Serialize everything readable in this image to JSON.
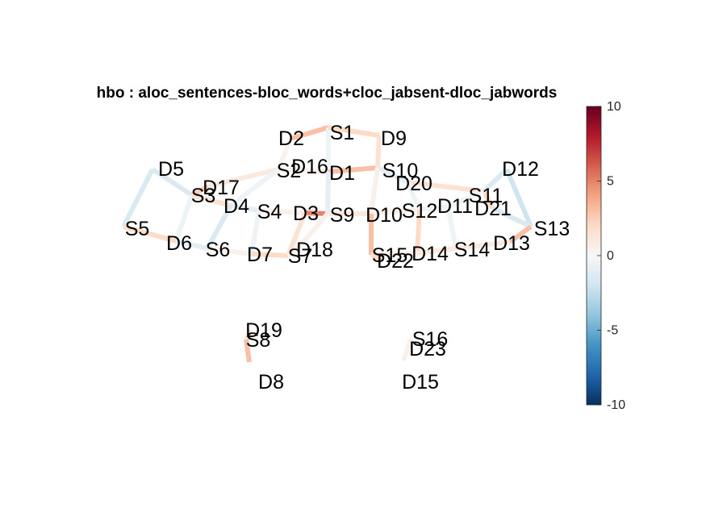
{
  "title": "hbo : aloc_sentences-bloc_words+cloc_jabsent-dloc_jabwords",
  "colorbar": {
    "ticks": [
      "10",
      "5",
      "0",
      "-5",
      "-10"
    ],
    "min": -10,
    "max": 10,
    "colors": [
      "#67001f",
      "#b2182b",
      "#d6604d",
      "#f4a582",
      "#fddbc7",
      "#f7f7f7",
      "#d1e5f0",
      "#92c5de",
      "#4393c3",
      "#2166ac",
      "#053061"
    ]
  },
  "nodes": [
    {
      "id": "S1",
      "label": "S1"
    },
    {
      "id": "D2",
      "label": "D2"
    },
    {
      "id": "D9",
      "label": "D9"
    },
    {
      "id": "D16",
      "label": "D16"
    },
    {
      "id": "S2",
      "label": "S2"
    },
    {
      "id": "D1",
      "label": "D1"
    },
    {
      "id": "S10",
      "label": "S10"
    },
    {
      "id": "D12",
      "label": "D12"
    },
    {
      "id": "D5",
      "label": "D5"
    },
    {
      "id": "D17",
      "label": "D17"
    },
    {
      "id": "D20",
      "label": "D20"
    },
    {
      "id": "S3",
      "label": "S3"
    },
    {
      "id": "S11",
      "label": "S11"
    },
    {
      "id": "D4",
      "label": "D4"
    },
    {
      "id": "D11",
      "label": "D11"
    },
    {
      "id": "D21",
      "label": "D21"
    },
    {
      "id": "S4",
      "label": "S4"
    },
    {
      "id": "S12",
      "label": "S12"
    },
    {
      "id": "D3",
      "label": "D3"
    },
    {
      "id": "S9",
      "label": "S9"
    },
    {
      "id": "D10",
      "label": "D10"
    },
    {
      "id": "S5",
      "label": "S5"
    },
    {
      "id": "S13",
      "label": "S13"
    },
    {
      "id": "D6",
      "label": "D6"
    },
    {
      "id": "D13",
      "label": "D13"
    },
    {
      "id": "S6",
      "label": "S6"
    },
    {
      "id": "D18",
      "label": "D18"
    },
    {
      "id": "S14",
      "label": "S14"
    },
    {
      "id": "D7",
      "label": "D7"
    },
    {
      "id": "S7",
      "label": "S7"
    },
    {
      "id": "S15",
      "label": "S15"
    },
    {
      "id": "D14",
      "label": "D14"
    },
    {
      "id": "D22",
      "label": "D22"
    },
    {
      "id": "D19",
      "label": "D19"
    },
    {
      "id": "S8",
      "label": "S8"
    },
    {
      "id": "S16",
      "label": "S16"
    },
    {
      "id": "D23",
      "label": "D23"
    },
    {
      "id": "D8",
      "label": "D8"
    },
    {
      "id": "D15",
      "label": "D15"
    }
  ],
  "channels": [
    {
      "id": "S1-D2",
      "value": 3.0
    },
    {
      "id": "S1-D1",
      "value": -0.5
    },
    {
      "id": "S1-D9",
      "value": 2.0
    },
    {
      "id": "S2-D2",
      "value": 0.3
    },
    {
      "id": "S2-D17",
      "value": 1.0
    },
    {
      "id": "S2-D4",
      "value": -0.5
    },
    {
      "id": "S2-D1",
      "value": 0.5
    },
    {
      "id": "S10-D1",
      "value": 3.0
    },
    {
      "id": "S10-D9",
      "value": 1.5
    },
    {
      "id": "S10-D20",
      "value": -1.0
    },
    {
      "id": "S10-D10",
      "value": 0.5
    },
    {
      "id": "S3-D5",
      "value": -1.5
    },
    {
      "id": "S3-D17",
      "value": 2.5
    },
    {
      "id": "S3-D6",
      "value": -0.5
    },
    {
      "id": "S3-D4",
      "value": 1.5
    },
    {
      "id": "S4-D4",
      "value": -1.0
    },
    {
      "id": "S4-D3",
      "value": 0.5
    },
    {
      "id": "S4-D7",
      "value": -0.5
    },
    {
      "id": "S9-D3",
      "value": 5.0
    },
    {
      "id": "S9-D1",
      "value": -1.0
    },
    {
      "id": "S9-D10",
      "value": 1.0
    },
    {
      "id": "S9-D18",
      "value": 0.5
    },
    {
      "id": "S5-D5",
      "value": -1.5
    },
    {
      "id": "S5-D6",
      "value": 2.0
    },
    {
      "id": "S6-D6",
      "value": -1.0
    },
    {
      "id": "S6-D4",
      "value": -1.5
    },
    {
      "id": "S6-D7",
      "value": 0.5
    },
    {
      "id": "S7-D7",
      "value": 2.0
    },
    {
      "id": "S7-D3",
      "value": 1.5
    },
    {
      "id": "S7-D18",
      "value": 0.5
    },
    {
      "id": "S11-D12",
      "value": -1.5
    },
    {
      "id": "S11-D20",
      "value": 1.5
    },
    {
      "id": "S11-D21",
      "value": 2.0
    },
    {
      "id": "S11-D11",
      "value": -0.5
    },
    {
      "id": "S12-D20",
      "value": -0.5
    },
    {
      "id": "S12-D10",
      "value": 0.5
    },
    {
      "id": "S12-D11",
      "value": -0.5
    },
    {
      "id": "S12-D14",
      "value": 2.0
    },
    {
      "id": "S13-D12",
      "value": -2.0
    },
    {
      "id": "S13-D21",
      "value": -1.5
    },
    {
      "id": "S13-D13",
      "value": 3.0
    },
    {
      "id": "S14-D11",
      "value": -0.5
    },
    {
      "id": "S14-D13",
      "value": 1.0
    },
    {
      "id": "S14-D14",
      "value": 1.0
    },
    {
      "id": "S15-D10",
      "value": 3.0
    },
    {
      "id": "S15-D14",
      "value": 0.5
    },
    {
      "id": "S15-D22",
      "value": 2.0
    },
    {
      "id": "S8-D19",
      "value": 1.5
    },
    {
      "id": "S8-D8",
      "value": 3.0
    },
    {
      "id": "S16-D23",
      "value": -0.5
    },
    {
      "id": "S16-D15",
      "value": 0.5
    }
  ]
}
